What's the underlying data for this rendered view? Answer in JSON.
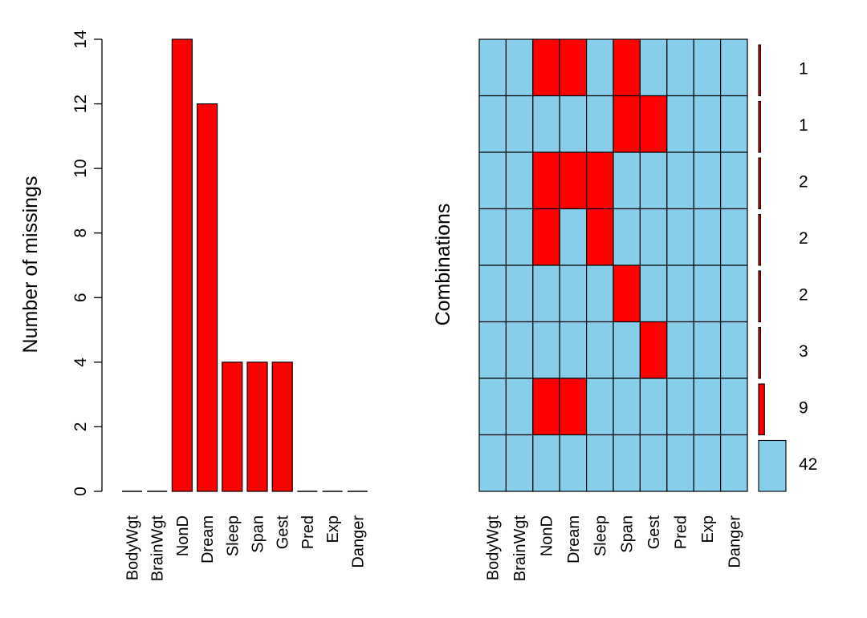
{
  "chart_data": [
    {
      "type": "bar",
      "ylabel": "Number of missings",
      "categories": [
        "BodyWgt",
        "BrainWgt",
        "NonD",
        "Dream",
        "Sleep",
        "Span",
        "Gest",
        "Pred",
        "Exp",
        "Danger"
      ],
      "values": [
        0,
        0,
        14,
        12,
        4,
        4,
        4,
        0,
        0,
        0
      ],
      "yticks": [
        0,
        2,
        4,
        6,
        8,
        10,
        12,
        14
      ],
      "ylim": [
        0,
        14
      ],
      "bar_color": "#ff0000"
    },
    {
      "type": "heatmap",
      "ylabel": "Combinations",
      "variables": [
        "BodyWgt",
        "BrainWgt",
        "NonD",
        "Dream",
        "Sleep",
        "Span",
        "Gest",
        "Pred",
        "Exp",
        "Danger"
      ],
      "rows": [
        {
          "pattern": [
            0,
            0,
            1,
            1,
            0,
            1,
            0,
            0,
            0,
            0
          ],
          "count": 1
        },
        {
          "pattern": [
            0,
            0,
            0,
            0,
            0,
            1,
            1,
            0,
            0,
            0
          ],
          "count": 1
        },
        {
          "pattern": [
            0,
            0,
            1,
            1,
            1,
            0,
            0,
            0,
            0,
            0
          ],
          "count": 2
        },
        {
          "pattern": [
            0,
            0,
            1,
            0,
            1,
            0,
            0,
            0,
            0,
            0
          ],
          "count": 2
        },
        {
          "pattern": [
            0,
            0,
            0,
            0,
            0,
            1,
            0,
            0,
            0,
            0
          ],
          "count": 2
        },
        {
          "pattern": [
            0,
            0,
            0,
            0,
            0,
            0,
            1,
            0,
            0,
            0
          ],
          "count": 3
        },
        {
          "pattern": [
            0,
            0,
            1,
            1,
            0,
            0,
            0,
            0,
            0,
            0
          ],
          "count": 9
        },
        {
          "pattern": [
            0,
            0,
            0,
            0,
            0,
            0,
            0,
            0,
            0,
            0
          ],
          "count": 42
        }
      ],
      "count_labels": [
        "1",
        "1",
        "2",
        "2",
        "2",
        "3",
        "9",
        "42"
      ],
      "missing_color": "#ff0000",
      "observed_color": "#87ceeb"
    }
  ]
}
